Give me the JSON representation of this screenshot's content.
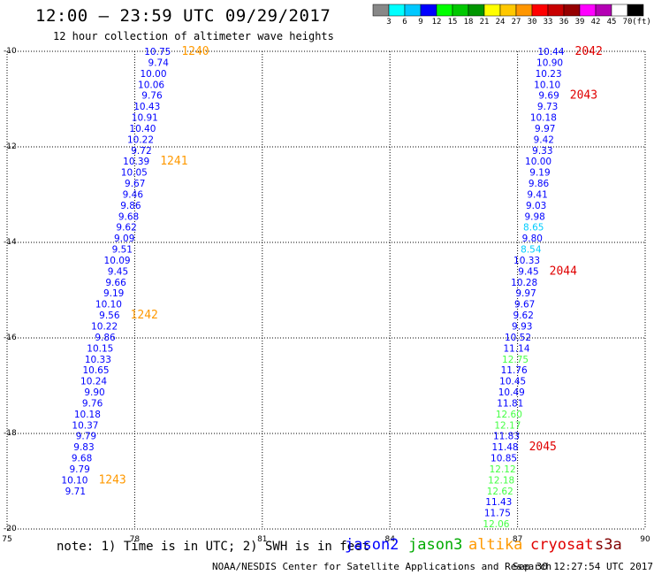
{
  "header": {
    "title": "12:00 – 23:59 UTC 09/29/2017",
    "subtitle": "12 hour collection of altimeter wave heights"
  },
  "color_scale": {
    "colors": [
      "#888888",
      "#00ffff",
      "#00c8ff",
      "#0000ff",
      "#00ff00",
      "#00c800",
      "#009600",
      "#ffff00",
      "#ffc800",
      "#ff9600",
      "#ff0000",
      "#c80000",
      "#960000",
      "#ff00ff",
      "#b400b4",
      "#ffffff",
      "#000000"
    ],
    "ticks": [
      "3",
      "6",
      "9",
      "12",
      "15",
      "18",
      "21",
      "24",
      "27",
      "30",
      "33",
      "36",
      "39",
      "42",
      "45",
      "70"
    ],
    "unit": "(ft)"
  },
  "satellite_colors": {
    "jason2": "#0000ff",
    "jason3": "#00aa00",
    "jason3_light": "#44ff44",
    "altika": "#ff9900",
    "cryosat": "#e00000",
    "s3a": "#800000",
    "cyan": "#00ccff"
  },
  "footer": {
    "note": "note: 1) Time is in UTC; 2) SWH is in feet",
    "legend": [
      {
        "label": "jason2",
        "color": "#0000ff"
      },
      {
        "label": "jason3",
        "color": "#00aa00"
      },
      {
        "label": "altika",
        "color": "#ff9900"
      },
      {
        "label": "cryosat",
        "color": "#e00000"
      },
      {
        "label": "s3a",
        "color": "#800000"
      }
    ],
    "credit": "NOAA/NESDIS Center for Satellite Applications and Research",
    "generated": "Sep 30 12:27:54 UTC 2017"
  },
  "chart_data": {
    "type": "scatter",
    "xlim": [
      75,
      90
    ],
    "ylim": [
      -20,
      -10
    ],
    "xticks": [
      "75",
      "78",
      "81",
      "84",
      "87",
      "90"
    ],
    "yticks": [
      "-10",
      "-12",
      "-14",
      "-16",
      "-18",
      "-20"
    ],
    "grid": true,
    "series": [
      {
        "name": "jason2",
        "color": "#0000ff",
        "points": [
          {
            "x": 78.85,
            "y": -10.0,
            "label": "10.75"
          },
          {
            "x": 78.8,
            "y": -10.23,
            "label": "9.74"
          },
          {
            "x": 78.75,
            "y": -10.46,
            "label": "10.00"
          },
          {
            "x": 78.7,
            "y": -10.69,
            "label": "10.06"
          },
          {
            "x": 78.65,
            "y": -10.92,
            "label": "9.76"
          },
          {
            "x": 78.6,
            "y": -11.15,
            "label": "10.43"
          },
          {
            "x": 78.55,
            "y": -11.38,
            "label": "10.91"
          },
          {
            "x": 78.5,
            "y": -11.61,
            "label": "10.40"
          },
          {
            "x": 78.45,
            "y": -11.84,
            "label": "10.22"
          },
          {
            "x": 78.4,
            "y": -12.07,
            "label": "9.72"
          },
          {
            "x": 78.35,
            "y": -12.3,
            "label": "10.39"
          },
          {
            "x": 78.3,
            "y": -12.53,
            "label": "10.05"
          },
          {
            "x": 78.25,
            "y": -12.76,
            "label": "9.67"
          },
          {
            "x": 78.2,
            "y": -12.99,
            "label": "9.46"
          },
          {
            "x": 78.15,
            "y": -13.22,
            "label": "9.86"
          },
          {
            "x": 78.1,
            "y": -13.45,
            "label": "9.68"
          },
          {
            "x": 78.05,
            "y": -13.68,
            "label": "9.62"
          },
          {
            "x": 78.0,
            "y": -13.91,
            "label": "9.09"
          },
          {
            "x": 77.95,
            "y": -14.14,
            "label": "9.51"
          },
          {
            "x": 77.9,
            "y": -14.37,
            "label": "10.09"
          },
          {
            "x": 77.85,
            "y": -14.6,
            "label": "9.45"
          },
          {
            "x": 77.8,
            "y": -14.83,
            "label": "9.66"
          },
          {
            "x": 77.75,
            "y": -15.06,
            "label": "9.19"
          },
          {
            "x": 77.7,
            "y": -15.29,
            "label": "10.10"
          },
          {
            "x": 77.65,
            "y": -15.52,
            "label": "9.56"
          },
          {
            "x": 77.6,
            "y": -15.75,
            "label": "10.22"
          },
          {
            "x": 77.55,
            "y": -15.98,
            "label": "9.86"
          },
          {
            "x": 77.5,
            "y": -16.21,
            "label": "10.15"
          },
          {
            "x": 77.45,
            "y": -16.44,
            "label": "10.33"
          },
          {
            "x": 77.4,
            "y": -16.67,
            "label": "10.65"
          },
          {
            "x": 77.35,
            "y": -16.9,
            "label": "10.24"
          },
          {
            "x": 77.3,
            "y": -17.13,
            "label": "9.90"
          },
          {
            "x": 77.25,
            "y": -17.36,
            "label": "9.76"
          },
          {
            "x": 77.2,
            "y": -17.59,
            "label": "10.18"
          },
          {
            "x": 77.15,
            "y": -17.82,
            "label": "10.37"
          },
          {
            "x": 77.1,
            "y": -18.05,
            "label": "9.79"
          },
          {
            "x": 77.05,
            "y": -18.28,
            "label": "9.83"
          },
          {
            "x": 77.0,
            "y": -18.51,
            "label": "9.68"
          },
          {
            "x": 76.95,
            "y": -18.74,
            "label": "9.79"
          },
          {
            "x": 76.9,
            "y": -18.97,
            "label": "10.10"
          },
          {
            "x": 76.85,
            "y": -19.2,
            "label": "9.71"
          }
        ]
      },
      {
        "name": "altika",
        "color": "#ff9900",
        "points": [
          {
            "x": 78.85,
            "y": -10.0,
            "label": "1240"
          },
          {
            "x": 78.35,
            "y": -12.3,
            "label": "1241"
          },
          {
            "x": 77.65,
            "y": -15.52,
            "label": "1242"
          },
          {
            "x": 76.9,
            "y": -18.97,
            "label": "1243"
          }
        ]
      },
      {
        "name": "jason3",
        "color": "#0000ff",
        "points": [
          {
            "x": 88.1,
            "y": -10.0,
            "label": "10.44"
          },
          {
            "x": 88.07,
            "y": -10.23,
            "label": "10.90"
          },
          {
            "x": 88.04,
            "y": -10.46,
            "label": "10.23"
          },
          {
            "x": 88.01,
            "y": -10.69,
            "label": "10.10"
          },
          {
            "x": 87.98,
            "y": -10.92,
            "label": "9.69"
          },
          {
            "x": 87.95,
            "y": -11.15,
            "label": "9.73"
          },
          {
            "x": 87.92,
            "y": -11.38,
            "label": "10.18"
          },
          {
            "x": 87.89,
            "y": -11.61,
            "label": "9.97"
          },
          {
            "x": 87.86,
            "y": -11.84,
            "label": "9.42"
          },
          {
            "x": 87.83,
            "y": -12.07,
            "label": "9.33"
          },
          {
            "x": 87.8,
            "y": -12.3,
            "label": "10.00"
          },
          {
            "x": 87.77,
            "y": -12.53,
            "label": "9.19"
          },
          {
            "x": 87.74,
            "y": -12.76,
            "label": "9.86"
          },
          {
            "x": 87.71,
            "y": -12.99,
            "label": "9.41"
          },
          {
            "x": 87.68,
            "y": -13.22,
            "label": "9.03"
          },
          {
            "x": 87.65,
            "y": -13.45,
            "label": "9.98"
          },
          {
            "x": 87.62,
            "y": -13.68,
            "label": "8.65",
            "color": "#00ccff"
          },
          {
            "x": 87.59,
            "y": -13.91,
            "label": "9.80"
          },
          {
            "x": 87.56,
            "y": -14.14,
            "label": "8.54",
            "color": "#00ccff"
          },
          {
            "x": 87.53,
            "y": -14.37,
            "label": "10.33"
          },
          {
            "x": 87.5,
            "y": -14.6,
            "label": "9.45"
          },
          {
            "x": 87.47,
            "y": -14.83,
            "label": "10.28"
          },
          {
            "x": 87.44,
            "y": -15.06,
            "label": "9.97"
          },
          {
            "x": 87.41,
            "y": -15.29,
            "label": "9.67"
          },
          {
            "x": 87.38,
            "y": -15.52,
            "label": "9.62"
          },
          {
            "x": 87.35,
            "y": -15.75,
            "label": "9.93"
          },
          {
            "x": 87.32,
            "y": -15.98,
            "label": "10.52"
          },
          {
            "x": 87.29,
            "y": -16.21,
            "label": "11.14"
          },
          {
            "x": 87.26,
            "y": -16.44,
            "label": "12.75",
            "color": "#44ff44"
          },
          {
            "x": 87.23,
            "y": -16.67,
            "label": "11.76"
          },
          {
            "x": 87.2,
            "y": -16.9,
            "label": "10.45"
          },
          {
            "x": 87.17,
            "y": -17.13,
            "label": "10.49"
          },
          {
            "x": 87.14,
            "y": -17.36,
            "label": "11.81"
          },
          {
            "x": 87.11,
            "y": -17.59,
            "label": "12.60",
            "color": "#44ff44"
          },
          {
            "x": 87.08,
            "y": -17.82,
            "label": "12.17",
            "color": "#44ff44"
          },
          {
            "x": 87.05,
            "y": -18.05,
            "label": "11.83"
          },
          {
            "x": 87.02,
            "y": -18.28,
            "label": "11.48"
          },
          {
            "x": 86.99,
            "y": -18.51,
            "label": "10.85"
          },
          {
            "x": 86.96,
            "y": -18.74,
            "label": "12.12",
            "color": "#44ff44"
          },
          {
            "x": 86.93,
            "y": -18.97,
            "label": "12.18",
            "color": "#44ff44"
          },
          {
            "x": 86.9,
            "y": -19.2,
            "label": "12.62",
            "color": "#44ff44"
          },
          {
            "x": 86.87,
            "y": -19.43,
            "label": "11.43"
          },
          {
            "x": 86.84,
            "y": -19.66,
            "label": "11.75"
          },
          {
            "x": 86.81,
            "y": -19.89,
            "label": "12.06",
            "color": "#44ff44"
          }
        ]
      },
      {
        "name": "cryosat",
        "color": "#e00000",
        "points": [
          {
            "x": 88.1,
            "y": -10.0,
            "label": "2042"
          },
          {
            "x": 87.98,
            "y": -10.92,
            "label": "2043"
          },
          {
            "x": 87.5,
            "y": -14.6,
            "label": "2044"
          },
          {
            "x": 87.02,
            "y": -18.28,
            "label": "2045"
          }
        ]
      }
    ]
  }
}
